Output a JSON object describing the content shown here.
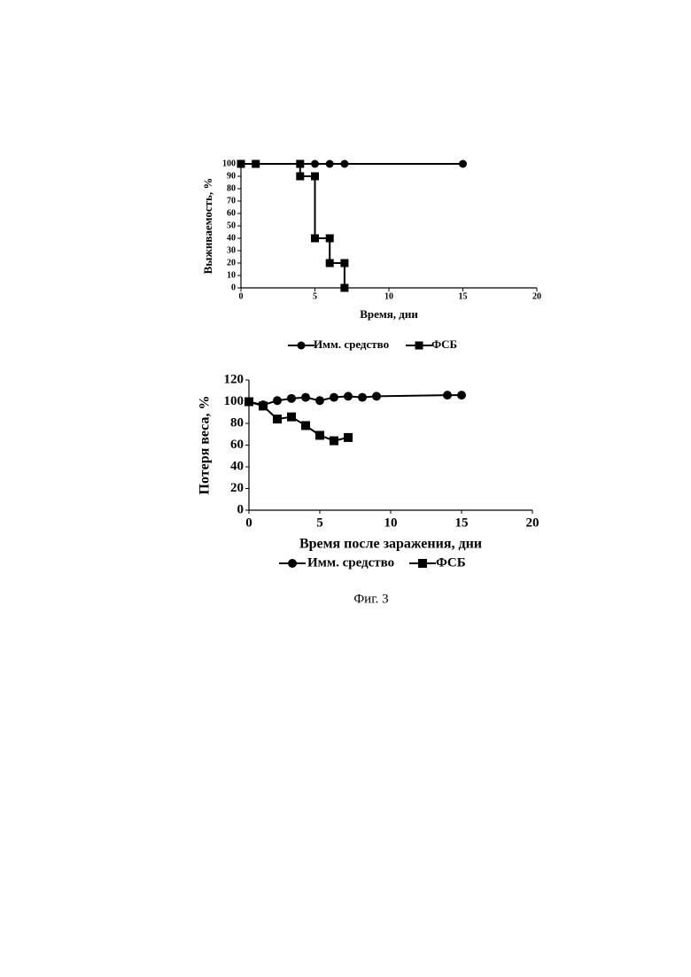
{
  "chart_data": [
    {
      "type": "line",
      "y_label": "Выживаемость, %",
      "x_label": "Время, дни",
      "xlim": [
        0,
        20
      ],
      "xticks": [
        0,
        5,
        10,
        15,
        20
      ],
      "ylim": [
        0,
        100
      ],
      "yticks": [
        0,
        10,
        20,
        30,
        40,
        50,
        60,
        70,
        80,
        90,
        100
      ],
      "series": [
        {
          "name": "Имм. средство",
          "color": "#000000",
          "marker": "circle",
          "x": [
            0,
            1,
            4,
            5,
            6,
            7,
            15
          ],
          "values": [
            100,
            100,
            100,
            100,
            100,
            100,
            100
          ]
        },
        {
          "name": "ФСБ",
          "color": "#000000",
          "marker": "square",
          "x": [
            0,
            1,
            4,
            4,
            5,
            5,
            6,
            6,
            7,
            7
          ],
          "values": [
            100,
            100,
            100,
            90,
            90,
            40,
            40,
            20,
            20,
            0
          ]
        }
      ]
    },
    {
      "type": "line",
      "y_label": "Потеря веса, %",
      "x_label": "Время после заражения, дни",
      "xlim": [
        0,
        20
      ],
      "xticks": [
        0,
        5,
        10,
        15,
        20
      ],
      "ylim": [
        0,
        120
      ],
      "yticks": [
        0,
        20,
        40,
        60,
        80,
        100,
        120
      ],
      "series": [
        {
          "name": "Имм. средство",
          "color": "#000000",
          "marker": "circle",
          "x": [
            0,
            1,
            2,
            3,
            4,
            5,
            6,
            7,
            8,
            9,
            14,
            15
          ],
          "values": [
            100,
            97,
            101,
            103,
            104,
            101,
            104,
            105,
            104,
            105,
            106,
            106
          ]
        },
        {
          "name": "ФСБ",
          "color": "#000000",
          "marker": "square",
          "x": [
            0,
            1,
            2,
            3,
            4,
            5,
            6,
            7
          ],
          "values": [
            100,
            96,
            84,
            86,
            78,
            69,
            64,
            67
          ]
        }
      ]
    }
  ],
  "caption": "Фиг. 3"
}
